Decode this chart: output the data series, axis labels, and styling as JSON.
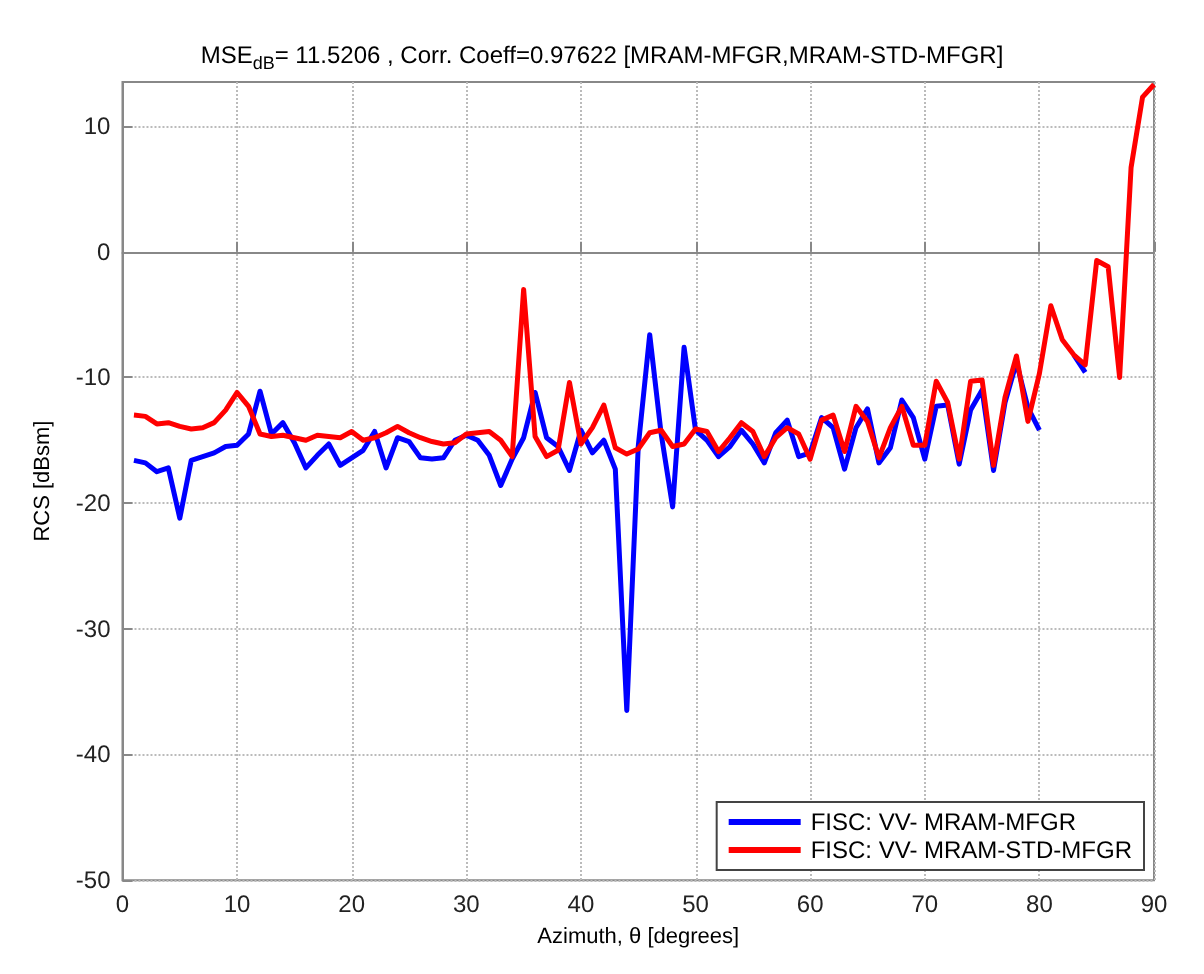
{
  "chart_data": {
    "type": "line",
    "title": "MSE$_{dB}$= 11.5206 , Corr. Coeff=0.97622 [MRAM-MFGR,MRAM-STD-MFGR]",
    "xlabel": "Azimuth, θ [degrees]",
    "ylabel": "RCS [dBsm]",
    "x": [
      1,
      2,
      3,
      4,
      5,
      6,
      7,
      8,
      9,
      10,
      11,
      12,
      13,
      14,
      15,
      16,
      17,
      18,
      19,
      20,
      21,
      22,
      23,
      24,
      25,
      26,
      27,
      28,
      29,
      30,
      31,
      32,
      33,
      34,
      35,
      36,
      37,
      38,
      39,
      40,
      41,
      42,
      43,
      44,
      45,
      46,
      47,
      48,
      49,
      50,
      51,
      52,
      53,
      54,
      55,
      56,
      57,
      58,
      59,
      60,
      61,
      62,
      63,
      64,
      65,
      66,
      67,
      68,
      69,
      70,
      71,
      72,
      73,
      74,
      75,
      76,
      77,
      78,
      79,
      80,
      81,
      82,
      83,
      84,
      85,
      86,
      87,
      88,
      89,
      90
    ],
    "series": [
      {
        "name": "FISC: VV- MRAM-MFGR",
        "color": "#0000ff",
        "values": [
          -16.6,
          -16.8,
          -17.5,
          -17.2,
          -21.2,
          -16.6,
          -16.3,
          -16,
          -15.5,
          -15.4,
          -14.5,
          -11.1,
          -14.5,
          -13.6,
          -15.2,
          -17.2,
          -16.2,
          -15.3,
          -17,
          -16.4,
          -15.8,
          -14.3,
          -17.2,
          -14.8,
          -15.1,
          -16.4,
          -16.5,
          -16.4,
          -15,
          -14.6,
          -15,
          -16.2,
          -18.6,
          -16.5,
          -14.8,
          -11.2,
          -14.8,
          -15.5,
          -17.4,
          -14.2,
          -16,
          -15,
          -17.3,
          -36.5,
          -15.5,
          -6.6,
          -14.5,
          -20.3,
          -7.6,
          -14.2,
          -15,
          -16.3,
          -15.5,
          -14.2,
          -15.3,
          -16.8,
          -14.4,
          -13.4,
          -16.3,
          -16,
          -13.2,
          -14,
          -17.3,
          -14,
          -12.5,
          -16.8,
          -15.6,
          -11.8,
          -13.2,
          -16.5,
          -12.3,
          -12.2,
          -16.9,
          -12.6,
          -11,
          -17.4,
          -12,
          -8.8,
          -12.4,
          -14.2,
          null,
          null,
          -8.2,
          -9.6,
          null,
          null,
          null,
          null,
          null,
          null
        ]
      },
      {
        "name": "FISC: VV- MRAM-STD-MFGR",
        "color": "#ff0000",
        "values": [
          -13,
          -13.1,
          -13.7,
          -13.6,
          -13.9,
          -14.1,
          -14,
          -13.6,
          -12.6,
          -11.2,
          -12.3,
          -14.5,
          -14.7,
          -14.6,
          -14.8,
          -15,
          -14.6,
          -14.7,
          -14.8,
          -14.3,
          -15,
          -14.8,
          -14.4,
          -13.9,
          -14.4,
          -14.8,
          -15.1,
          -15.3,
          -15.2,
          -14.5,
          -14.4,
          -14.3,
          -15,
          -16.3,
          -3,
          -14.7,
          -16.3,
          -15.8,
          -10.4,
          -15.3,
          -14,
          -12.2,
          -15.6,
          -16.1,
          -15.7,
          -14.4,
          -14.2,
          -15.5,
          -15.3,
          -14.1,
          -14.3,
          -15.9,
          -14.8,
          -13.6,
          -14.3,
          -16.3,
          -14.8,
          -14,
          -14.5,
          -16.5,
          -13.4,
          -13,
          -15.9,
          -12.3,
          -13.5,
          -16.4,
          -14,
          -12.3,
          -15.4,
          -15.4,
          -10.3,
          -12,
          -16.5,
          -10.3,
          -10.2,
          -17,
          -11.6,
          -8.3,
          -13.5,
          -9.7,
          -4.3,
          -7,
          -8.2,
          -9,
          -0.7,
          -1.2,
          -10,
          6.7,
          12.3,
          13.3
        ]
      }
    ],
    "xlim": [
      0,
      90
    ],
    "xticks": [
      0,
      10,
      20,
      30,
      40,
      50,
      60,
      70,
      80,
      90
    ],
    "ylim": [
      -50,
      13.5
    ],
    "yticks": [
      -50,
      -40,
      -30,
      -20,
      -10,
      0,
      10
    ],
    "grid": true,
    "legend": "bottom right",
    "marker": "none",
    "line_style": "solid"
  }
}
